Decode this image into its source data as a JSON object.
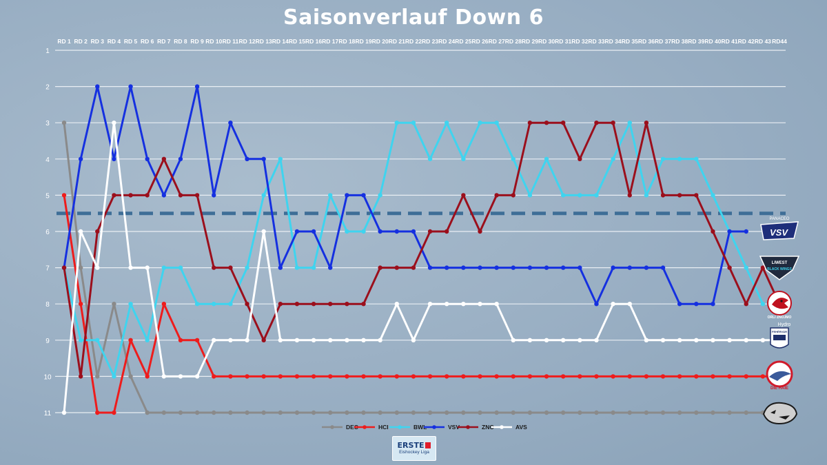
{
  "title": "Saisonverlauf Down 6",
  "colors": {
    "DEC": "#8a8a8a",
    "HCI": "#ee1c1c",
    "BWL": "#3fd4ef",
    "VSV": "#1530e0",
    "ZNO": "#9b0f1c",
    "AVS": "#ffffff",
    "cutoff": "#3e6e97",
    "grid": "#e9eef3"
  },
  "chart_data": {
    "type": "line",
    "title": "Saisonverlauf Down 6",
    "categories": [
      "RD 1",
      "RD 2",
      "RD 3",
      "RD 4",
      "RD 5",
      "RD 6",
      "RD 7",
      "RD 8",
      "RD 9",
      "RD 10",
      "RD 11",
      "RD 12",
      "RD 13",
      "RD 14",
      "RD 15",
      "RD 16",
      "RD 17",
      "RD 18",
      "RD 19",
      "RD 20",
      "RD 21",
      "RD 22",
      "RD 23",
      "RD 24",
      "RD 25",
      "RD 26",
      "RD 27",
      "RD 28",
      "RD 29",
      "RD 30",
      "RD 31",
      "RD 32",
      "RD 33",
      "RD 34",
      "RD 35",
      "RD 36",
      "RD 37",
      "RD 38",
      "RD 39",
      "RD 40",
      "RD 41",
      "RD 42",
      "RD 43",
      "RD44"
    ],
    "y_ticks": [
      "1",
      "2",
      "3",
      "4",
      "5",
      "6",
      "7",
      "8",
      "9",
      "10",
      "11"
    ],
    "ylim": [
      1,
      11
    ],
    "y_inverted": true,
    "cutoff_line": 5.5,
    "grid": true,
    "legend_position": "bottom",
    "series": [
      {
        "name": "DEC",
        "values": [
          3,
          7,
          10,
          8,
          10,
          11,
          11,
          11,
          11,
          11,
          11,
          11,
          11,
          11,
          11,
          11,
          11,
          11,
          11,
          11,
          11,
          11,
          11,
          11,
          11,
          11,
          11,
          11,
          11,
          11,
          11,
          11,
          11,
          11,
          11,
          11,
          11,
          11,
          11,
          11,
          11,
          11,
          11,
          11
        ]
      },
      {
        "name": "HCI",
        "values": [
          5,
          8,
          11,
          11,
          9,
          10,
          8,
          9,
          9,
          10,
          10,
          10,
          10,
          10,
          10,
          10,
          10,
          10,
          10,
          10,
          10,
          10,
          10,
          10,
          10,
          10,
          10,
          10,
          10,
          10,
          10,
          10,
          10,
          10,
          10,
          10,
          10,
          10,
          10,
          10,
          10,
          10,
          10,
          10
        ]
      },
      {
        "name": "BWL",
        "values": [
          7,
          9,
          9,
          10,
          8,
          9,
          7,
          7,
          8,
          8,
          8,
          7,
          5,
          4,
          7,
          7,
          5,
          6,
          6,
          5,
          3,
          3,
          4,
          3,
          4,
          3,
          3,
          4,
          5,
          4,
          5,
          5,
          5,
          4,
          3,
          5,
          4,
          4,
          4,
          5,
          6,
          7,
          8,
          null
        ]
      },
      {
        "name": "VSV",
        "values": [
          7,
          4,
          2,
          4,
          2,
          4,
          5,
          4,
          2,
          5,
          3,
          4,
          4,
          7,
          6,
          6,
          7,
          5,
          5,
          6,
          6,
          6,
          7,
          7,
          7,
          7,
          7,
          7,
          7,
          7,
          7,
          7,
          8,
          7,
          7,
          7,
          7,
          8,
          8,
          8,
          6,
          6,
          null,
          null
        ]
      },
      {
        "name": "ZNO",
        "values": [
          7,
          10,
          6,
          5,
          5,
          5,
          4,
          5,
          5,
          7,
          7,
          8,
          9,
          8,
          8,
          8,
          8,
          8,
          8,
          7,
          7,
          7,
          6,
          6,
          5,
          6,
          5,
          5,
          3,
          3,
          3,
          4,
          3,
          3,
          5,
          3,
          5,
          5,
          5,
          6,
          7,
          8,
          7,
          8
        ]
      },
      {
        "name": "AVS",
        "values": [
          11,
          6,
          7,
          3,
          7,
          7,
          10,
          10,
          10,
          9,
          9,
          9,
          6,
          9,
          9,
          9,
          9,
          9,
          9,
          9,
          8,
          9,
          8,
          8,
          8,
          8,
          8,
          9,
          9,
          9,
          9,
          9,
          9,
          8,
          8,
          9,
          9,
          9,
          9,
          9,
          9,
          9,
          9,
          9
        ]
      }
    ]
  },
  "logos": [
    {
      "name": "VSV",
      "top_text": "PANACEO",
      "main_text": "VSV"
    },
    {
      "name": "BWL",
      "top_text": "LIWEST",
      "main_text": "BLACK WINGS"
    },
    {
      "name": "ZNO",
      "top_text": "",
      "main_text": "ORLI ZNOJMO"
    },
    {
      "name": "AVS",
      "top_text": "Hydro",
      "main_text": "FEHÉRVÁR"
    },
    {
      "name": "HCI",
      "top_text": "",
      "main_text": "DIE HAIE"
    },
    {
      "name": "DEC",
      "top_text": "",
      "main_text": ""
    }
  ],
  "sponsor": {
    "line1": "ERSTE",
    "line2": "Eishockey Liga"
  }
}
